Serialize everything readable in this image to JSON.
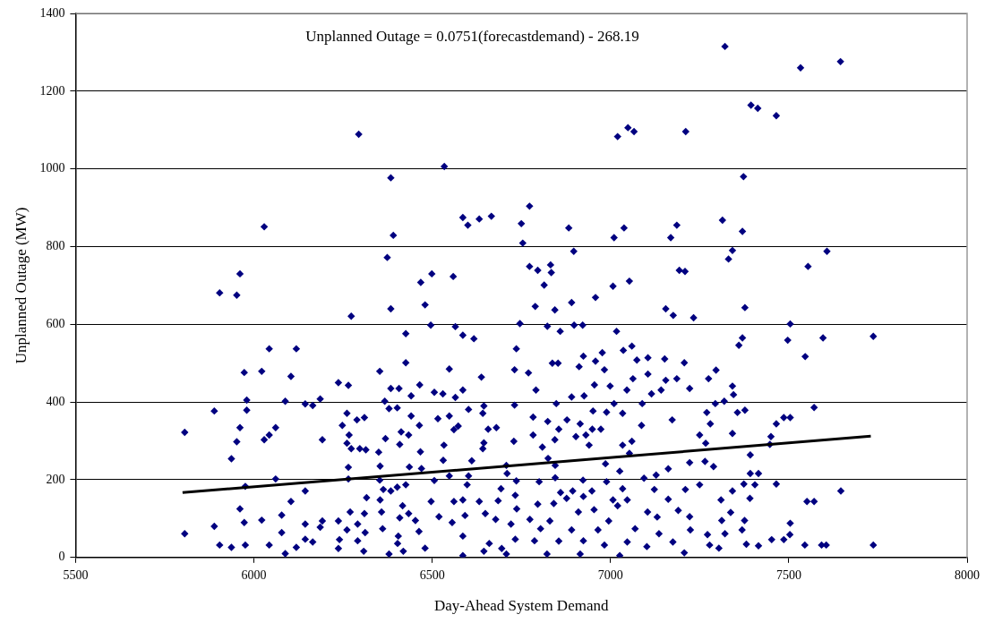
{
  "chart_data": {
    "type": "scatter",
    "xlabel": "Day-Ahead System Demand",
    "ylabel": "Unplanned Outage (MW)",
    "annotations": [
      "Unplanned Outage = 0.0751(forecastdemand) - 268.19"
    ],
    "xlim": [
      5500,
      8000
    ],
    "xticks": [
      5500,
      6000,
      6500,
      7000,
      7500,
      8000
    ],
    "ylim": [
      0,
      1400
    ],
    "yticks": [
      0,
      200,
      400,
      600,
      800,
      1000,
      1200,
      1400
    ],
    "grid": "y",
    "series": [
      {
        "marker": "diamond",
        "color": "#000080",
        "x": [
          5806,
          5806,
          5889,
          5889,
          5904,
          5904,
          5952,
          5937,
          5937,
          5952,
          5961,
          5973,
          5980,
          5980,
          5976,
          5961,
          5973,
          5976,
          6022,
          6029,
          6043,
          6061,
          6043,
          6061,
          6022,
          6043,
          6088,
          6104,
          6119,
          6078,
          6104,
          6078,
          6088,
          6119,
          6144,
          6165,
          6186,
          6192,
          6144,
          6144,
          6144,
          6165,
          6186,
          6192,
          6237,
          6265,
          6273,
          6261,
          6248,
          6267,
          6261,
          6273,
          6265,
          6265,
          6270,
          6237,
          6261,
          6240,
          6237,
          6289,
          6310,
          6297,
          6314,
          6316,
          6310,
          6291,
          6312,
          6291,
          6308,
          6353,
          6384,
          6384,
          6367,
          6379,
          6369,
          6350,
          6354,
          6353,
          6363,
          6384,
          6354,
          6358,
          6361,
          6379,
          6403,
          6426,
          6426,
          6407,
          6402,
          6413,
          6434,
          6409,
          6436,
          6426,
          6402,
          6417,
          6409,
          6434,
          6405,
          6419,
          6441,
          6465,
          6441,
          6464,
          6467,
          6470,
          6463,
          6453,
          6480,
          6496,
          6506,
          6530,
          6516,
          6533,
          6531,
          6506,
          6497,
          6519,
          6480,
          6548,
          6565,
          6586,
          6617,
          6586,
          6565,
          6548,
          6573,
          6561,
          6548,
          6598,
          6602,
          6611,
          6561,
          6586,
          6592,
          6556,
          6586,
          6586,
          6638,
          6645,
          6602,
          6642,
          6657,
          6680,
          6645,
          6642,
          6632,
          6685,
          6693,
          6649,
          6678,
          6660,
          6645,
          6695,
          6708,
          6710,
          6746,
          6736,
          6731,
          6731,
          6729,
          6736,
          6733,
          6737,
          6721,
          6733,
          6708,
          6789,
          6844,
          6891,
          6958,
          6823,
          6859,
          6898,
          6922,
          7017,
          7155,
          7176,
          7233,
          7377,
          7504,
          7497,
          7596,
          7737,
          7546,
          7370,
          7360,
          7571,
          7504,
          7486,
          7465,
          7450,
          7447,
          7737,
          7646,
          7571,
          7551,
          7605,
          7592,
          7545,
          7504,
          7503,
          7486,
          7452,
          7465,
          7415,
          7392,
          7392,
          7405,
          7374,
          7391,
          7377,
          7356,
          7342,
          7296,
          7275,
          7342,
          7345,
          7319,
          7294,
          7270,
          7280,
          7250,
          7267,
          7265,
          7289,
          7222,
          7250,
          7207,
          7222,
          7186,
          7152,
          7155,
          7173,
          7162,
          7105,
          7074,
          7105,
          7060,
          7036,
          6977,
          6958,
          6924,
          6912,
          6837,
          6853,
          6770,
          6983,
          6955,
          6999,
          7046,
          7063,
          7115,
          7142,
          7089,
          7010,
          7034,
          6989,
          6951,
          6926,
          6891,
          6848,
          6791,
          6783,
          6824,
          6855,
          6878,
          6915,
          6949,
          6973,
          7087,
          6903,
          6931,
          6844,
          6783,
          6940,
          6809,
          7034,
          7060,
          7053,
          6825,
          6845,
          6986,
          7026,
          7128,
          6845,
          6800,
          6923,
          6989,
          7094,
          7210,
          7342,
          6860,
          6894,
          6948,
          7034,
          7123,
          6877,
          6924,
          7007,
          7047,
          7162,
          7310,
          6841,
          6796,
          6910,
          6954,
          7020,
          7104,
          7190,
          7337,
          6774,
          6830,
          6995,
          7131,
          7222,
          7312,
          7376,
          6804,
          6891,
          6965,
          7069,
          7136,
          7224,
          7321,
          7369,
          6787,
          6855,
          6924,
          6983,
          7047,
          7175,
          7272,
          7278,
          7304,
          7381,
          7415,
          6822,
          6915,
          7026,
          7207,
          7102,
          6294,
          6384,
          6534,
          6029,
          6391,
          6374,
          6586,
          6600,
          6632,
          6666,
          6750,
          6754,
          5961,
          6468,
          6499,
          6559,
          7321,
          7533,
          7645,
          7394,
          7413,
          7465,
          7020,
          7049,
          7066,
          7211,
          7373,
          7314,
          7370,
          6883,
          7038,
          7010,
          6897,
          7169,
          7186,
          7342,
          7331,
          7607,
          7554,
          6773,
          6773,
          6796,
          6832,
          6834,
          6814,
          7007,
          7053,
          7193,
          7209
        ],
        "values": [
          322,
          61,
          377,
          80,
          681,
          32,
          675,
          254,
          26,
          298,
          334,
          476,
          405,
          379,
          183,
          125,
          90,
          32,
          479,
          303,
          315,
          334,
          537,
          202,
          96,
          32,
          402,
          466,
          537,
          109,
          144,
          64,
          10,
          26,
          395,
          391,
          408,
          303,
          171,
          86,
          47,
          40,
          78,
          94,
          450,
          443,
          621,
          371,
          340,
          315,
          294,
          280,
          232,
          202,
          117,
          94,
          71,
          46,
          23,
          354,
          360,
          280,
          277,
          154,
          113,
          86,
          64,
          43,
          16,
          479,
          640,
          435,
          402,
          383,
          306,
          271,
          235,
          199,
          175,
          171,
          148,
          117,
          74,
          9,
          36,
          576,
          501,
          435,
          385,
          323,
          315,
          291,
          233,
          187,
          181,
          133,
          102,
          113,
          55,
          16,
          416,
          444,
          364,
          340,
          272,
          229,
          67,
          95,
          650,
          598,
          425,
          421,
          357,
          289,
          250,
          198,
          144,
          105,
          24,
          485,
          594,
          572,
          563,
          431,
          412,
          364,
          338,
          329,
          210,
          187,
          210,
          249,
          144,
          148,
          108,
          90,
          5,
          55,
          464,
          390,
          381,
          371,
          330,
          334,
          295,
          280,
          144,
          146,
          177,
          113,
          98,
          36,
          16,
          23,
          237,
          216,
          602,
          537,
          483,
          392,
          299,
          197,
          160,
          125,
          86,
          47,
          9,
          646,
          637,
          656,
          669,
          595,
          582,
          598,
          598,
          582,
          640,
          623,
          617,
          643,
          601,
          559,
          565,
          569,
          517,
          565,
          546,
          386,
          360,
          360,
          344,
          311,
          291,
          32,
          171,
          144,
          144,
          32,
          32,
          32,
          88,
          59,
          46,
          46,
          189,
          216,
          264,
          216,
          187,
          189,
          152,
          379,
          373,
          319,
          482,
          460,
          441,
          419,
          402,
          396,
          373,
          344,
          315,
          294,
          247,
          234,
          244,
          187,
          501,
          435,
          460,
          511,
          456,
          354,
          228,
          514,
          508,
          472,
          544,
          533,
          527,
          505,
          518,
          491,
          500,
          500,
          475,
          483,
          444,
          441,
          431,
          460,
          421,
          431,
          396,
          396,
          371,
          374,
          377,
          416,
          413,
          396,
          431,
          361,
          350,
          330,
          354,
          344,
          330,
          330,
          340,
          311,
          315,
          303,
          315,
          289,
          284,
          289,
          299,
          268,
          255,
          237,
          241,
          222,
          212,
          205,
          195,
          199,
          195,
          204,
          175,
          171,
          167,
          171,
          171,
          177,
          175,
          152,
          157,
          148,
          148,
          150,
          148,
          139,
          137,
          117,
          123,
          133,
          117,
          121,
          116,
          98,
          94,
          94,
          104,
          105,
          95,
          95,
          74,
          71,
          71,
          74,
          61,
          71,
          61,
          71,
          43,
          42,
          43,
          32,
          40,
          40,
          59,
          32,
          24,
          34,
          30,
          9,
          9,
          5,
          12,
          28,
          1089,
          977,
          1006,
          851,
          829,
          772,
          875,
          855,
          871,
          878,
          859,
          809,
          730,
          708,
          730,
          723,
          1315,
          1260,
          1276,
          1164,
          1156,
          1137,
          1083,
          1106,
          1096,
          1096,
          980,
          868,
          839,
          848,
          848,
          823,
          788,
          823,
          855,
          790,
          768,
          788,
          749,
          904,
          749,
          739,
          753,
          733,
          701,
          698,
          711,
          739,
          736
        ]
      },
      {
        "type": "line",
        "marker": "none",
        "color": "#000000",
        "x": [
          5800,
          7730
        ],
        "values": [
          167,
          312
        ]
      }
    ]
  }
}
